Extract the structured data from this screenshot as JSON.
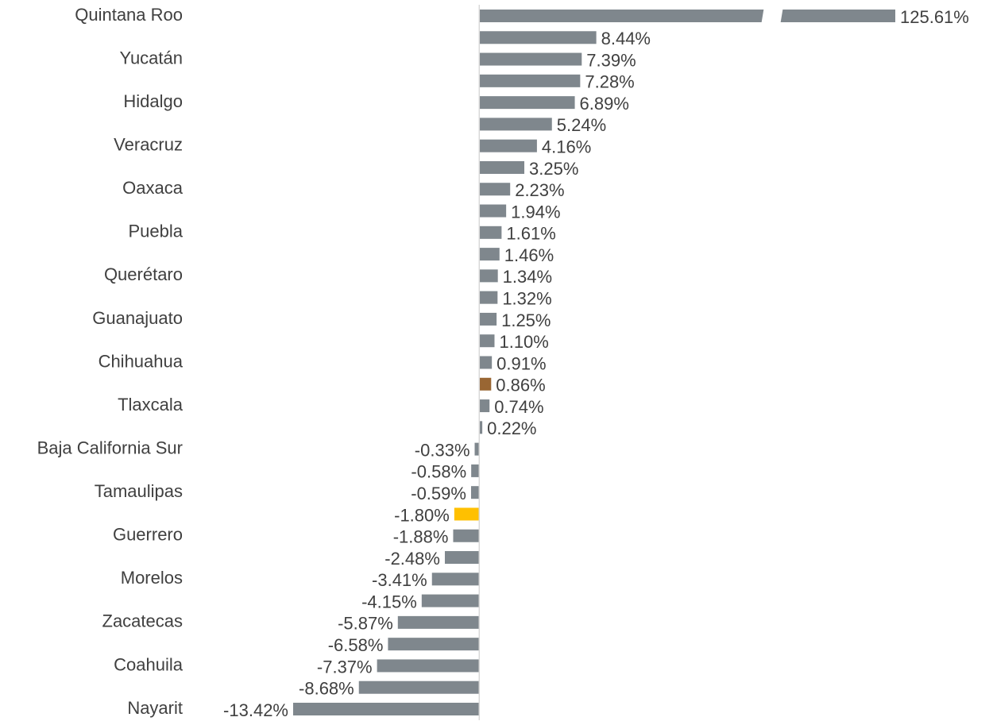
{
  "chart_data": {
    "type": "hbar",
    "categories": [
      "Quintana Roo",
      null,
      "Yucatán",
      null,
      "Hidalgo",
      null,
      "Veracruz",
      null,
      "Oaxaca",
      null,
      "Puebla",
      null,
      "Querétaro",
      null,
      "Guanajuato",
      null,
      "Chihuahua",
      null,
      "Tlaxcala",
      null,
      "Baja California Sur",
      null,
      "Tamaulipas",
      null,
      "Guerrero",
      null,
      "Morelos",
      null,
      "Zacatecas",
      null,
      "Coahuila",
      null,
      "Nayarit"
    ],
    "values": [
      125.61,
      8.44,
      7.39,
      7.28,
      6.89,
      5.24,
      4.16,
      3.25,
      2.23,
      1.94,
      1.61,
      1.46,
      1.34,
      1.32,
      1.25,
      1.1,
      0.91,
      0.86,
      0.74,
      0.22,
      -0.33,
      -0.58,
      -0.59,
      -1.8,
      -1.88,
      -2.48,
      -3.41,
      -4.15,
      -5.87,
      -6.58,
      -7.37,
      -8.68,
      -13.42
    ],
    "value_labels": [
      "125.61%",
      "8.44%",
      "7.39%",
      "7.28%",
      "6.89%",
      "5.24%",
      "4.16%",
      "3.25%",
      "2.23%",
      "1.94%",
      "1.61%",
      "1.46%",
      "1.34%",
      "1.32%",
      "1.25%",
      "1.10%",
      "0.91%",
      "0.86%",
      "0.74%",
      "0.22%",
      "-0.33%",
      "-0.58%",
      "-0.59%",
      "-1.80%",
      "-1.88%",
      "-2.48%",
      "-3.41%",
      "-4.15%",
      "-5.87%",
      "-6.58%",
      "-7.37%",
      "-8.68%",
      "-13.42%"
    ],
    "colors": [
      "#7f878d",
      "#7f878d",
      "#7f878d",
      "#7f878d",
      "#7f878d",
      "#7f878d",
      "#7f878d",
      "#7f878d",
      "#7f878d",
      "#7f878d",
      "#7f878d",
      "#7f878d",
      "#7f878d",
      "#7f878d",
      "#7f878d",
      "#7f878d",
      "#7f878d",
      "#996633",
      "#7f878d",
      "#7f878d",
      "#7f878d",
      "#7f878d",
      "#7f878d",
      "#ffc000",
      "#7f878d",
      "#7f878d",
      "#7f878d",
      "#7f878d",
      "#7f878d",
      "#7f878d",
      "#7f878d",
      "#7f878d",
      "#7f878d"
    ],
    "xlim": [
      -13.42,
      30
    ],
    "axis_break": true
  }
}
